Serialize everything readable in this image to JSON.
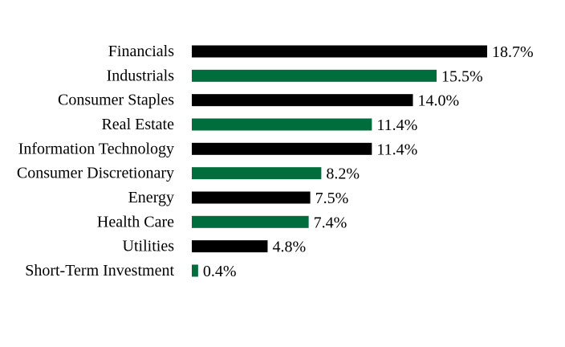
{
  "chart_data": {
    "type": "bar",
    "orientation": "horizontal",
    "categories": [
      "Financials",
      "Industrials",
      "Consumer Staples",
      "Real Estate",
      "Information Technology",
      "Consumer Discretionary",
      "Energy",
      "Health Care",
      "Utilities",
      "Short-Term Investment"
    ],
    "values": [
      18.7,
      15.5,
      14.0,
      11.4,
      11.4,
      8.2,
      7.5,
      7.4,
      4.8,
      0.4
    ],
    "value_labels": [
      "18.7%",
      "15.5%",
      "14.0%",
      "11.4%",
      "11.4%",
      "8.2%",
      "7.5%",
      "7.4%",
      "4.8%",
      "0.4%"
    ],
    "bar_colors": [
      "#000000",
      "#006e3c",
      "#000000",
      "#006e3c",
      "#000000",
      "#006e3c",
      "#000000",
      "#006e3c",
      "#000000",
      "#006e3c"
    ],
    "xlim": [
      0,
      18.7
    ],
    "grid": false,
    "legend": "none"
  }
}
